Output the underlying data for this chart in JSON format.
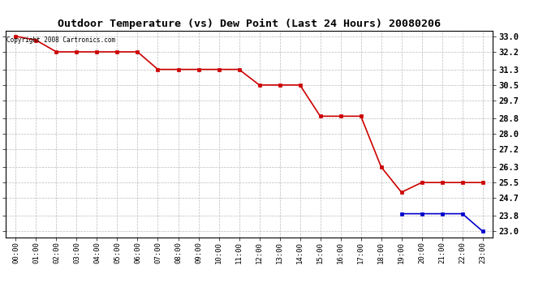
{
  "title": "Outdoor Temperature (vs) Dew Point (Last 24 Hours) 20080206",
  "copyright_text": "Copyright 2008 Cartronics.com",
  "x_labels": [
    "00:00",
    "01:00",
    "02:00",
    "03:00",
    "04:00",
    "05:00",
    "06:00",
    "07:00",
    "08:00",
    "09:00",
    "10:00",
    "11:00",
    "12:00",
    "13:00",
    "14:00",
    "15:00",
    "16:00",
    "17:00",
    "18:00",
    "19:00",
    "20:00",
    "21:00",
    "22:00",
    "23:00"
  ],
  "temp_values": [
    33.0,
    32.8,
    32.2,
    32.2,
    32.2,
    32.2,
    32.2,
    31.3,
    31.3,
    31.3,
    31.3,
    31.3,
    30.5,
    30.5,
    30.5,
    28.9,
    28.9,
    28.9,
    26.3,
    25.0,
    25.5,
    25.5,
    25.5,
    25.5
  ],
  "dew_values": [
    null,
    null,
    null,
    null,
    null,
    null,
    null,
    null,
    null,
    null,
    null,
    null,
    null,
    null,
    null,
    null,
    null,
    null,
    null,
    23.9,
    23.9,
    23.9,
    23.9,
    23.0
  ],
  "temp_color": "#cc0000",
  "dew_color": "#0000cc",
  "grid_color": "#bbbbbb",
  "bg_color": "#ffffff",
  "plot_bg_color": "#ffffff",
  "yticks": [
    23.0,
    23.8,
    24.7,
    25.5,
    26.3,
    27.2,
    28.0,
    28.8,
    29.7,
    30.5,
    31.3,
    32.2,
    33.0
  ],
  "ylim_min": 22.7,
  "ylim_max": 33.3,
  "marker": "s",
  "marker_size": 2.5,
  "line_width": 1.2
}
